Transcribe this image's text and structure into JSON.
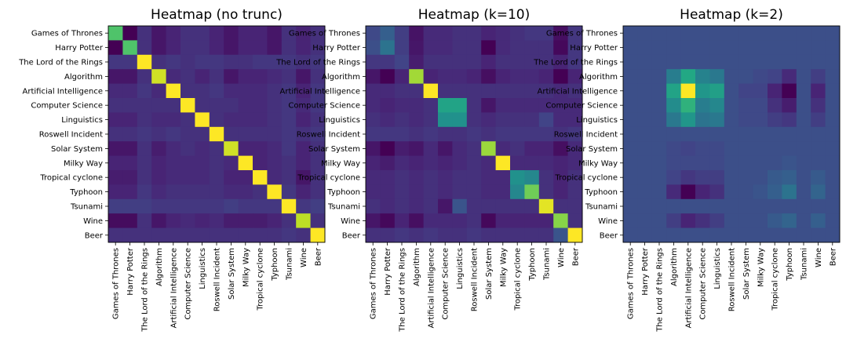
{
  "chart_data": [
    {
      "type": "heatmap",
      "title": "Heatmap (no trunc)",
      "colormap": "viridis",
      "categories": [
        "Games of Thrones",
        "Harry Potter",
        "The Lord of the Rings",
        "Algorithm",
        "Artificial Intelligence",
        "Computer Science",
        "Linguistics",
        "Roswell Incident",
        "Solar System",
        "Milky Way",
        "Tropical cyclone",
        "Typhoon",
        "Tsunami",
        "Wine",
        "Beer"
      ],
      "vrange": [
        0,
        1
      ],
      "values": [
        [
          0.72,
          0.0,
          0.14,
          0.06,
          0.1,
          0.14,
          0.14,
          0.1,
          0.06,
          0.1,
          0.1,
          0.06,
          0.14,
          0.1,
          0.14
        ],
        [
          0.0,
          0.72,
          0.14,
          0.06,
          0.1,
          0.14,
          0.14,
          0.1,
          0.06,
          0.1,
          0.1,
          0.06,
          0.14,
          0.1,
          0.14
        ],
        [
          0.16,
          0.16,
          1.0,
          0.14,
          0.16,
          0.14,
          0.16,
          0.16,
          0.14,
          0.14,
          0.16,
          0.16,
          0.16,
          0.14,
          0.16
        ],
        [
          0.06,
          0.06,
          0.14,
          0.93,
          0.12,
          0.14,
          0.1,
          0.14,
          0.06,
          0.1,
          0.1,
          0.12,
          0.14,
          0.06,
          0.14
        ],
        [
          0.12,
          0.12,
          0.16,
          0.12,
          1.0,
          0.14,
          0.14,
          0.16,
          0.12,
          0.12,
          0.12,
          0.14,
          0.16,
          0.1,
          0.16
        ],
        [
          0.14,
          0.14,
          0.14,
          0.14,
          0.14,
          1.0,
          0.14,
          0.14,
          0.14,
          0.12,
          0.12,
          0.14,
          0.16,
          0.12,
          0.16
        ],
        [
          0.1,
          0.1,
          0.14,
          0.12,
          0.12,
          0.14,
          1.0,
          0.14,
          0.12,
          0.12,
          0.12,
          0.14,
          0.16,
          0.1,
          0.14
        ],
        [
          0.14,
          0.14,
          0.16,
          0.14,
          0.16,
          0.14,
          0.14,
          1.0,
          0.14,
          0.14,
          0.14,
          0.14,
          0.16,
          0.14,
          0.16
        ],
        [
          0.06,
          0.06,
          0.14,
          0.08,
          0.12,
          0.14,
          0.12,
          0.14,
          0.93,
          0.1,
          0.1,
          0.12,
          0.16,
          0.1,
          0.14
        ],
        [
          0.1,
          0.1,
          0.14,
          0.1,
          0.12,
          0.12,
          0.12,
          0.14,
          0.12,
          1.0,
          0.1,
          0.12,
          0.14,
          0.1,
          0.14
        ],
        [
          0.08,
          0.08,
          0.14,
          0.1,
          0.12,
          0.12,
          0.12,
          0.14,
          0.1,
          0.1,
          1.0,
          0.12,
          0.14,
          0.06,
          0.14
        ],
        [
          0.1,
          0.1,
          0.16,
          0.12,
          0.14,
          0.14,
          0.14,
          0.14,
          0.12,
          0.12,
          0.14,
          1.0,
          0.16,
          0.1,
          0.14
        ],
        [
          0.18,
          0.18,
          0.18,
          0.16,
          0.16,
          0.16,
          0.16,
          0.16,
          0.18,
          0.16,
          0.16,
          0.16,
          1.0,
          0.16,
          0.18
        ],
        [
          0.03,
          0.03,
          0.14,
          0.06,
          0.1,
          0.12,
          0.1,
          0.12,
          0.08,
          0.08,
          0.08,
          0.1,
          0.14,
          0.9,
          0.14
        ],
        [
          0.14,
          0.14,
          0.14,
          0.14,
          0.14,
          0.14,
          0.14,
          0.14,
          0.14,
          0.14,
          0.14,
          0.14,
          0.16,
          0.14,
          1.0
        ]
      ]
    },
    {
      "type": "heatmap",
      "title": "Heatmap (k=10)",
      "colormap": "viridis",
      "categories": [
        "Games of Thrones",
        "Harry Potter",
        "The Lord of the Rings",
        "Algorithm",
        "Artificial Intelligence",
        "Computer Science",
        "Linguistics",
        "Roswell Incident",
        "Solar System",
        "Milky Way",
        "Tropical cyclone",
        "Typhoon",
        "Tsunami",
        "Wine",
        "Beer"
      ],
      "vrange": [
        0,
        1
      ],
      "values": [
        [
          0.22,
          0.3,
          0.18,
          0.05,
          0.12,
          0.12,
          0.14,
          0.14,
          0.1,
          0.12,
          0.14,
          0.16,
          0.16,
          0.04,
          0.16
        ],
        [
          0.24,
          0.38,
          0.18,
          0.06,
          0.12,
          0.12,
          0.14,
          0.14,
          0.0,
          0.12,
          0.14,
          0.14,
          0.14,
          0.02,
          0.16
        ],
        [
          0.16,
          0.16,
          0.2,
          0.08,
          0.14,
          0.14,
          0.14,
          0.14,
          0.1,
          0.14,
          0.14,
          0.14,
          0.14,
          0.1,
          0.16
        ],
        [
          0.06,
          0.0,
          0.1,
          0.86,
          0.1,
          0.12,
          0.12,
          0.1,
          0.04,
          0.1,
          0.12,
          0.12,
          0.1,
          0.0,
          0.1
        ],
        [
          0.12,
          0.12,
          0.14,
          0.14,
          1.0,
          0.14,
          0.14,
          0.14,
          0.14,
          0.14,
          0.14,
          0.14,
          0.14,
          0.12,
          0.14
        ],
        [
          0.12,
          0.1,
          0.12,
          0.12,
          0.14,
          0.58,
          0.58,
          0.14,
          0.06,
          0.12,
          0.12,
          0.12,
          0.12,
          0.12,
          0.12
        ],
        [
          0.14,
          0.12,
          0.14,
          0.12,
          0.14,
          0.5,
          0.5,
          0.14,
          0.12,
          0.14,
          0.14,
          0.14,
          0.2,
          0.12,
          0.12
        ],
        [
          0.16,
          0.16,
          0.16,
          0.14,
          0.16,
          0.14,
          0.14,
          0.16,
          0.14,
          0.16,
          0.16,
          0.16,
          0.16,
          0.14,
          0.16
        ],
        [
          0.06,
          0.0,
          0.08,
          0.06,
          0.12,
          0.06,
          0.12,
          0.14,
          0.85,
          0.12,
          0.14,
          0.1,
          0.1,
          0.04,
          0.12
        ],
        [
          0.1,
          0.08,
          0.12,
          0.1,
          0.12,
          0.1,
          0.12,
          0.14,
          0.12,
          1.0,
          0.12,
          0.12,
          0.12,
          0.1,
          0.12
        ],
        [
          0.12,
          0.12,
          0.14,
          0.12,
          0.14,
          0.12,
          0.14,
          0.14,
          0.12,
          0.12,
          0.5,
          0.46,
          0.14,
          0.1,
          0.14
        ],
        [
          0.12,
          0.12,
          0.14,
          0.12,
          0.14,
          0.12,
          0.14,
          0.14,
          0.12,
          0.12,
          0.46,
          0.78,
          0.14,
          0.1,
          0.14
        ],
        [
          0.14,
          0.12,
          0.14,
          0.12,
          0.14,
          0.06,
          0.26,
          0.14,
          0.14,
          0.14,
          0.14,
          0.14,
          0.96,
          0.14,
          0.14
        ],
        [
          0.06,
          0.02,
          0.1,
          0.04,
          0.12,
          0.12,
          0.12,
          0.14,
          0.02,
          0.1,
          0.1,
          0.1,
          0.1,
          0.82,
          0.14
        ],
        [
          0.14,
          0.14,
          0.16,
          0.14,
          0.16,
          0.14,
          0.14,
          0.16,
          0.14,
          0.14,
          0.14,
          0.14,
          0.14,
          0.26,
          1.0
        ]
      ]
    },
    {
      "type": "heatmap",
      "title": "Heatmap (k=2)",
      "colormap": "viridis",
      "categories": [
        "Games of Thrones",
        "Harry Potter",
        "The Lord of the Rings",
        "Algorithm",
        "Artificial Intelligence",
        "Computer Science",
        "Linguistics",
        "Roswell Incident",
        "Solar System",
        "Milky Way",
        "Tropical cyclone",
        "Typhoon",
        "Tsunami",
        "Wine",
        "Beer"
      ],
      "vrange": [
        0,
        1
      ],
      "values": [
        [
          0.24,
          0.24,
          0.24,
          0.24,
          0.24,
          0.24,
          0.24,
          0.24,
          0.24,
          0.24,
          0.24,
          0.24,
          0.24,
          0.24,
          0.24
        ],
        [
          0.24,
          0.24,
          0.24,
          0.24,
          0.24,
          0.24,
          0.24,
          0.24,
          0.24,
          0.24,
          0.24,
          0.24,
          0.24,
          0.24,
          0.24
        ],
        [
          0.24,
          0.24,
          0.24,
          0.24,
          0.24,
          0.24,
          0.24,
          0.24,
          0.24,
          0.24,
          0.24,
          0.24,
          0.24,
          0.24,
          0.24
        ],
        [
          0.24,
          0.24,
          0.24,
          0.42,
          0.6,
          0.44,
          0.4,
          0.24,
          0.24,
          0.22,
          0.2,
          0.12,
          0.24,
          0.18,
          0.24
        ],
        [
          0.24,
          0.24,
          0.24,
          0.58,
          1.0,
          0.52,
          0.56,
          0.24,
          0.2,
          0.2,
          0.1,
          0.0,
          0.24,
          0.1,
          0.24
        ],
        [
          0.24,
          0.24,
          0.24,
          0.48,
          0.64,
          0.42,
          0.46,
          0.24,
          0.22,
          0.22,
          0.14,
          0.08,
          0.24,
          0.14,
          0.24
        ],
        [
          0.24,
          0.24,
          0.24,
          0.4,
          0.52,
          0.38,
          0.4,
          0.24,
          0.22,
          0.22,
          0.18,
          0.16,
          0.24,
          0.18,
          0.24
        ],
        [
          0.24,
          0.24,
          0.24,
          0.24,
          0.24,
          0.24,
          0.24,
          0.24,
          0.24,
          0.24,
          0.24,
          0.24,
          0.24,
          0.24,
          0.24
        ],
        [
          0.24,
          0.24,
          0.24,
          0.22,
          0.2,
          0.22,
          0.22,
          0.24,
          0.24,
          0.24,
          0.24,
          0.24,
          0.24,
          0.24,
          0.24
        ],
        [
          0.24,
          0.24,
          0.24,
          0.22,
          0.22,
          0.22,
          0.22,
          0.24,
          0.24,
          0.24,
          0.24,
          0.26,
          0.24,
          0.24,
          0.24
        ],
        [
          0.24,
          0.24,
          0.24,
          0.2,
          0.16,
          0.18,
          0.18,
          0.24,
          0.24,
          0.24,
          0.28,
          0.3,
          0.24,
          0.28,
          0.24
        ],
        [
          0.24,
          0.24,
          0.24,
          0.12,
          0.0,
          0.1,
          0.14,
          0.24,
          0.24,
          0.26,
          0.3,
          0.38,
          0.24,
          0.32,
          0.24
        ],
        [
          0.24,
          0.24,
          0.24,
          0.24,
          0.24,
          0.24,
          0.24,
          0.24,
          0.24,
          0.24,
          0.24,
          0.24,
          0.24,
          0.24,
          0.24
        ],
        [
          0.24,
          0.24,
          0.24,
          0.18,
          0.1,
          0.14,
          0.18,
          0.24,
          0.24,
          0.24,
          0.28,
          0.32,
          0.24,
          0.3,
          0.24
        ],
        [
          0.24,
          0.24,
          0.24,
          0.24,
          0.24,
          0.24,
          0.24,
          0.24,
          0.24,
          0.24,
          0.24,
          0.24,
          0.24,
          0.24,
          0.24
        ]
      ]
    }
  ]
}
